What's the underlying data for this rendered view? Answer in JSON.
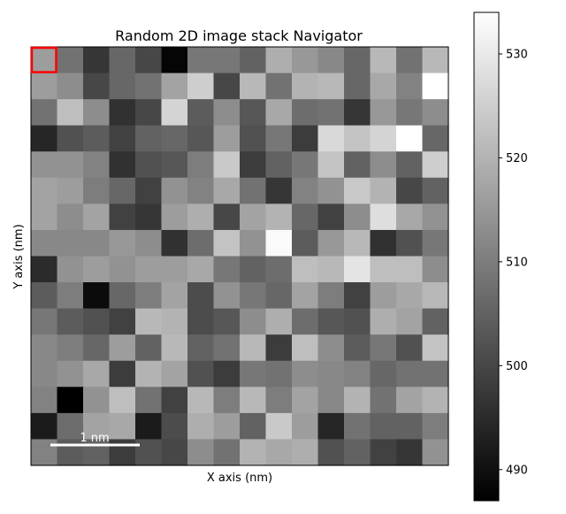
{
  "chart_data": {
    "type": "heatmap",
    "title": "Random 2D image stack Navigator",
    "xlabel": "X axis (nm)",
    "ylabel": "Y axis (nm)",
    "colormap": "gray",
    "value_range": [
      487,
      534
    ],
    "colorbar_ticks": [
      490,
      500,
      510,
      520,
      530
    ],
    "scalebar_label": "1 nm",
    "selection_box": {
      "row": 0,
      "col": 0,
      "color": "#ff0000"
    },
    "rows": 16,
    "cols": 16,
    "values": [
      [
        516,
        508,
        497,
        506,
        500,
        488,
        509,
        509,
        505,
        519,
        515,
        512,
        506,
        521,
        508,
        521
      ],
      [
        516,
        513,
        500,
        506,
        508,
        517,
        525,
        500,
        521,
        508,
        520,
        521,
        506,
        518,
        511,
        534
      ],
      [
        508,
        522,
        513,
        496,
        500,
        526,
        504,
        513,
        503,
        518,
        507,
        508,
        497,
        515,
        509,
        513
      ],
      [
        494,
        502,
        504,
        499,
        505,
        506,
        503,
        516,
        502,
        509,
        498,
        527,
        523,
        526,
        534,
        506
      ],
      [
        514,
        514,
        511,
        496,
        502,
        503,
        510,
        524,
        498,
        505,
        509,
        523,
        505,
        513,
        505,
        525
      ],
      [
        517,
        516,
        510,
        506,
        499,
        514,
        511,
        518,
        508,
        497,
        511,
        514,
        524,
        520,
        500,
        505
      ],
      [
        517,
        513,
        517,
        499,
        497,
        516,
        519,
        500,
        517,
        520,
        506,
        499,
        513,
        528,
        518,
        514
      ],
      [
        512,
        512,
        512,
        515,
        513,
        496,
        507,
        523,
        514,
        533,
        504,
        515,
        521,
        496,
        502,
        509
      ],
      [
        495,
        514,
        516,
        514,
        516,
        516,
        518,
        509,
        505,
        507,
        522,
        521,
        529,
        522,
        522,
        513
      ],
      [
        504,
        510,
        489,
        506,
        510,
        517,
        501,
        514,
        509,
        506,
        517,
        510,
        499,
        516,
        518,
        521
      ],
      [
        509,
        504,
        502,
        499,
        521,
        520,
        501,
        503,
        513,
        519,
        507,
        503,
        502,
        519,
        517,
        505
      ],
      [
        512,
        510,
        506,
        516,
        505,
        521,
        505,
        508,
        521,
        498,
        522,
        513,
        504,
        509,
        502,
        523
      ],
      [
        512,
        514,
        518,
        498,
        520,
        517,
        502,
        498,
        509,
        508,
        513,
        512,
        511,
        506,
        508,
        508
      ],
      [
        511,
        487,
        514,
        522,
        508,
        499,
        521,
        510,
        521,
        510,
        517,
        512,
        520,
        508,
        517,
        520
      ],
      [
        492,
        507,
        517,
        518,
        492,
        501,
        519,
        516,
        505,
        524,
        516,
        494,
        508,
        505,
        505,
        510
      ],
      [
        511,
        504,
        505,
        498,
        502,
        500,
        513,
        508,
        520,
        518,
        519,
        502,
        505,
        499,
        497,
        514
      ]
    ]
  }
}
